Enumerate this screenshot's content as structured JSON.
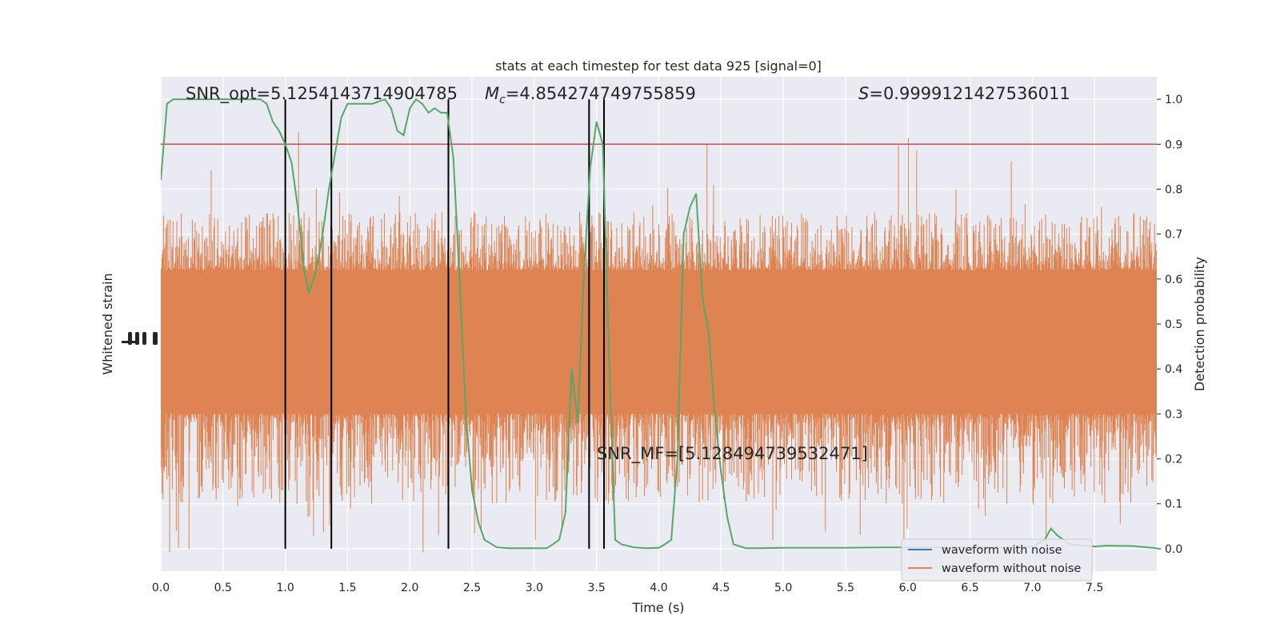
{
  "chart_data": {
    "type": "line",
    "title": "stats at each timestep for test data 925 [signal=0]",
    "xlabel": "Time (s)",
    "ylabel_left": "Whitened strain",
    "ylabel_right": "Detection probability",
    "xlim": [
      0,
      8
    ],
    "ylim_right": [
      -0.05,
      1.05
    ],
    "x_ticks": [
      "0.0",
      "0.5",
      "1.0",
      "1.5",
      "2.0",
      "2.5",
      "3.0",
      "3.5",
      "4.0",
      "4.5",
      "5.0",
      "5.5",
      "6.0",
      "6.5",
      "7.0",
      "7.5"
    ],
    "y_ticks_right": [
      "0.0",
      "0.1",
      "0.2",
      "0.3",
      "0.4",
      "0.5",
      "0.6",
      "0.7",
      "0.8",
      "0.9",
      "1.0"
    ],
    "grid": true,
    "legend_position": "lower-right",
    "colors": {
      "background": "#eaeaf2",
      "waveform_with_noise": "#4c72b0",
      "waveform_without_noise": "#dd8452",
      "detection_probability": "#55a868",
      "threshold": "#c44e52",
      "markers": "#000000"
    },
    "annotations": {
      "snr_opt": "SNR_opt=5.1254143714904785",
      "mc_symbol": "M",
      "mc_sub": "c",
      "mc_value": "=4.854274749755859",
      "s_symbol": "S",
      "s_value": "=0.9999121427536011",
      "snr_mf": "SNR_MF=[5.128494739532471]"
    },
    "series": [
      {
        "name": "waveform with noise",
        "style": "line"
      },
      {
        "name": "waveform without noise",
        "style": "line",
        "envelope_top": 0.75,
        "envelope_bottom": 0.1,
        "core_top": 0.62,
        "core_bottom": 0.3
      },
      {
        "name": "",
        "style": "line",
        "x": [
          0.0,
          0.05,
          0.1,
          0.2,
          0.3,
          0.5,
          0.7,
          0.8,
          0.85,
          0.9,
          0.95,
          1.0,
          1.05,
          1.1,
          1.15,
          1.19,
          1.25,
          1.3,
          1.35,
          1.4,
          1.45,
          1.5,
          1.6,
          1.7,
          1.8,
          1.85,
          1.9,
          1.95,
          2.0,
          2.05,
          2.1,
          2.15,
          2.2,
          2.25,
          2.3,
          2.35,
          2.4,
          2.45,
          2.5,
          2.55,
          2.6,
          2.7,
          2.8,
          3.0,
          3.1,
          3.15,
          3.2,
          3.25,
          3.3,
          3.35,
          3.4,
          3.45,
          3.5,
          3.55,
          3.6,
          3.65,
          3.7,
          3.8,
          3.9,
          4.0,
          4.05,
          4.1,
          4.15,
          4.2,
          4.25,
          4.3,
          4.35,
          4.4,
          4.45,
          4.5,
          4.55,
          4.6,
          4.7,
          4.8,
          5.0,
          5.2,
          5.5,
          5.8,
          6.0,
          6.5,
          6.8,
          7.0,
          7.1,
          7.15,
          7.2,
          7.3,
          7.5,
          7.6,
          7.8,
          8.0
        ],
        "y": [
          0.82,
          0.99,
          1.0,
          1.0,
          1.0,
          1.0,
          1.0,
          1.0,
          0.99,
          0.95,
          0.93,
          0.9,
          0.86,
          0.76,
          0.62,
          0.57,
          0.62,
          0.7,
          0.8,
          0.88,
          0.96,
          0.99,
          0.99,
          0.99,
          1.0,
          0.98,
          0.93,
          0.92,
          0.98,
          1.0,
          0.99,
          0.97,
          0.98,
          0.97,
          0.97,
          0.87,
          0.6,
          0.3,
          0.13,
          0.06,
          0.02,
          0.003,
          0.001,
          0.001,
          0.001,
          0.01,
          0.02,
          0.08,
          0.4,
          0.28,
          0.62,
          0.85,
          0.95,
          0.9,
          0.43,
          0.02,
          0.01,
          0.003,
          0.001,
          0.002,
          0.01,
          0.02,
          0.2,
          0.7,
          0.76,
          0.79,
          0.56,
          0.48,
          0.3,
          0.17,
          0.07,
          0.01,
          0.001,
          0.001,
          0.002,
          0.002,
          0.002,
          0.003,
          0.003,
          0.003,
          0.003,
          0.005,
          0.02,
          0.045,
          0.03,
          0.01,
          0.005,
          0.007,
          0.006,
          0.001
        ]
      },
      {
        "name": "",
        "style": "hline",
        "y": 0.9
      },
      {
        "name": "",
        "style": "vlines",
        "x": [
          1.0,
          1.37,
          2.31,
          3.44,
          3.56
        ],
        "ymin": 0.0,
        "ymax": 1.0
      }
    ],
    "legend": [
      {
        "name": "waveform with noise",
        "color": "#4c72b0"
      },
      {
        "name": "waveform without noise",
        "color": "#dd8452"
      }
    ]
  }
}
